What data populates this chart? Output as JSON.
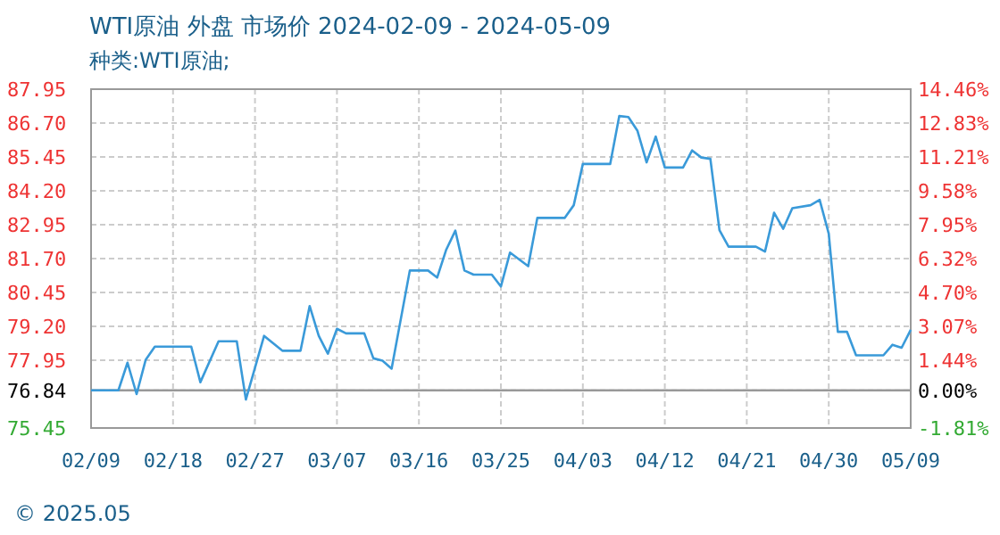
{
  "chart_data": {
    "type": "line",
    "title": "WTI原油 外盘 市场价 2024-02-09 - 2024-05-09",
    "subtitle": "种类:WTI原油;",
    "x": [
      "2024-02-09",
      "2024-02-12",
      "2024-02-13",
      "2024-02-14",
      "2024-02-15",
      "2024-02-16",
      "2024-02-20",
      "2024-02-21",
      "2024-02-23",
      "2024-02-25",
      "2024-02-26",
      "2024-02-28",
      "2024-03-01",
      "2024-03-03",
      "2024-03-04",
      "2024-03-05",
      "2024-03-06",
      "2024-03-07",
      "2024-03-08",
      "2024-03-10",
      "2024-03-11",
      "2024-03-12",
      "2024-03-13",
      "2024-03-15",
      "2024-03-17",
      "2024-03-18",
      "2024-03-19",
      "2024-03-20",
      "2024-03-21",
      "2024-03-22",
      "2024-03-24",
      "2024-03-25",
      "2024-03-26",
      "2024-03-28",
      "2024-03-29",
      "2024-04-01",
      "2024-04-02",
      "2024-04-03",
      "2024-04-06",
      "2024-04-07",
      "2024-04-08",
      "2024-04-09",
      "2024-04-10",
      "2024-04-11",
      "2024-04-12",
      "2024-04-14",
      "2024-04-15",
      "2024-04-16",
      "2024-04-17",
      "2024-04-18",
      "2024-04-19",
      "2024-04-22",
      "2024-04-23",
      "2024-04-24",
      "2024-04-25",
      "2024-04-26",
      "2024-04-28",
      "2024-04-29",
      "2024-04-30",
      "2024-05-01",
      "2024-05-02",
      "2024-05-03",
      "2024-05-06",
      "2024-05-07",
      "2024-05-08",
      "2024-05-09"
    ],
    "series": [
      {
        "color": "#3a9ad9",
        "values": [
          76.84,
          76.84,
          77.86,
          76.7,
          77.97,
          78.45,
          78.45,
          77.14,
          78.65,
          78.65,
          76.5,
          78.85,
          78.3,
          78.3,
          79.95,
          78.85,
          78.19,
          79.11,
          78.94,
          78.94,
          78.02,
          77.93,
          77.64,
          81.26,
          81.26,
          81.0,
          82.03,
          82.73,
          81.26,
          81.11,
          81.11,
          80.67,
          81.92,
          81.42,
          83.2,
          83.2,
          83.67,
          85.19,
          85.19,
          86.96,
          86.92,
          86.41,
          85.25,
          86.2,
          85.06,
          85.06,
          85.69,
          85.43,
          85.38,
          82.75,
          82.14,
          82.14,
          81.96,
          83.39,
          82.8,
          83.56,
          83.67,
          83.87,
          82.62,
          79.0,
          79.0,
          78.13,
          78.13,
          78.52,
          78.41,
          79.07
        ]
      }
    ],
    "xlim": [
      "2024-02-09",
      "2024-05-09"
    ],
    "xticks": [
      {
        "value": "2024-02-09",
        "label": "02/09"
      },
      {
        "value": "2024-02-18",
        "label": "02/18"
      },
      {
        "value": "2024-02-27",
        "label": "02/27"
      },
      {
        "value": "2024-03-07",
        "label": "03/07"
      },
      {
        "value": "2024-03-16",
        "label": "03/16"
      },
      {
        "value": "2024-03-25",
        "label": "03/25"
      },
      {
        "value": "2024-04-03",
        "label": "04/03"
      },
      {
        "value": "2024-04-12",
        "label": "04/12"
      },
      {
        "value": "2024-04-21",
        "label": "04/21"
      },
      {
        "value": "2024-04-30",
        "label": "04/30"
      },
      {
        "value": "2024-05-09",
        "label": "05/09"
      }
    ],
    "ylim": [
      75.45,
      87.95
    ],
    "yticks": [
      {
        "value": 75.45,
        "label": "75.45"
      },
      {
        "value": 76.84,
        "label": "76.84"
      },
      {
        "value": 77.95,
        "label": "77.95"
      },
      {
        "value": 79.2,
        "label": "79.20"
      },
      {
        "value": 80.45,
        "label": "80.45"
      },
      {
        "value": 81.7,
        "label": "81.70"
      },
      {
        "value": 82.95,
        "label": "82.95"
      },
      {
        "value": 84.2,
        "label": "84.20"
      },
      {
        "value": 85.45,
        "label": "85.45"
      },
      {
        "value": 86.7,
        "label": "86.70"
      },
      {
        "value": 87.95,
        "label": "87.95"
      }
    ],
    "y2lim": [
      -1.81,
      14.46
    ],
    "y2ticks": [
      {
        "value": -1.81,
        "label": "-1.81%"
      },
      {
        "value": 0,
        "label": "0.00%"
      },
      {
        "value": 1.44,
        "label": "1.44%"
      },
      {
        "value": 3.07,
        "label": "3.07%"
      },
      {
        "value": 4.7,
        "label": "4.70%"
      },
      {
        "value": 6.32,
        "label": "6.32%"
      },
      {
        "value": 7.95,
        "label": "7.95%"
      },
      {
        "value": 9.58,
        "label": "9.58%"
      },
      {
        "value": 11.21,
        "label": "11.21%"
      },
      {
        "value": 12.83,
        "label": "12.83%"
      },
      {
        "value": 14.46,
        "label": "14.46%"
      }
    ],
    "ref_lines": [
      {
        "axis": "y",
        "value": 76.84,
        "color": "#999999",
        "line_style": "solid"
      }
    ],
    "grid": true,
    "marker": "none",
    "line_style": "solid",
    "annotations": [
      "© 2025.05"
    ]
  }
}
